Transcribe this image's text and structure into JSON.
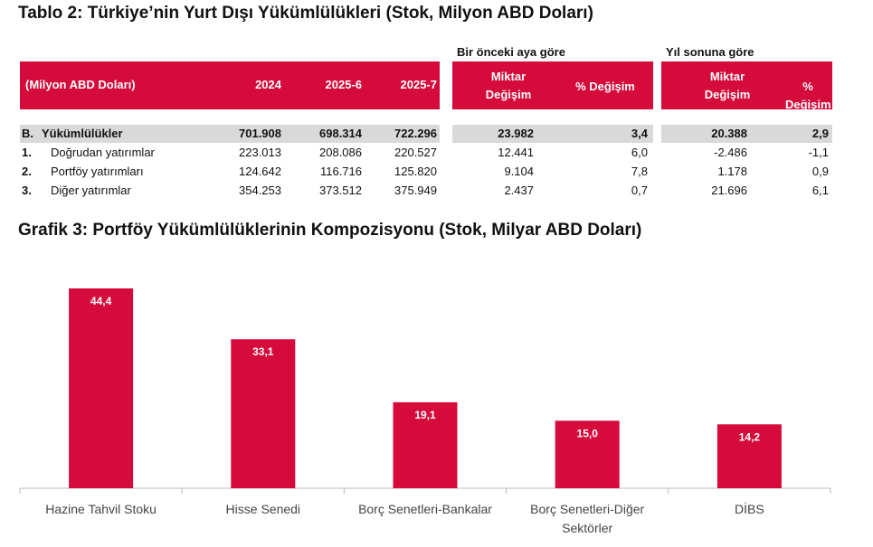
{
  "table": {
    "title": "Tablo 2: Türkiye’nin Yurt Dışı Yükümlülükleri (Stok, Milyon ABD Doları)",
    "group_headers": [
      "Bir önceki aya göre",
      "Yıl sonuna göre"
    ],
    "columns": [
      "(Milyon ABD Doları)",
      "2024",
      "2025-6",
      "2025-7",
      "Miktar Değişim",
      "% Değişim",
      "Miktar Değişim",
      "% Değişim"
    ],
    "rows": [
      [
        "B.",
        "Yükümlülükler",
        "701.908",
        "698.314",
        "722.296",
        "23.982",
        "3,4",
        "20.388",
        "2,9"
      ],
      [
        "1.",
        "Doğrudan yatırımlar",
        "223.013",
        "208.086",
        "220.527",
        "12.441",
        "6,0",
        "-2.486",
        "-1,1"
      ],
      [
        "2.",
        "Portföy yatırımları",
        "124.642",
        "116.716",
        "125.820",
        "9.104",
        "7,8",
        "1.178",
        "0,9"
      ],
      [
        "3.",
        "Diğer yatırımlar",
        "354.253",
        "373.512",
        "375.949",
        "2.437",
        "0,7",
        "21.696",
        "6,1"
      ]
    ]
  },
  "chart_data": {
    "type": "bar",
    "title": "Grafik 3: Portföy Yükümlülüklerinin Kompozisyonu (Stok, Milyar ABD Doları)",
    "categories": [
      "Hazine Tahvil Stoku",
      "Hisse Senedi",
      "Borç Senetleri-Bankalar",
      "Borç Senetleri-Diğer Sektörler",
      "DİBS"
    ],
    "values": [
      44.4,
      33.1,
      19.1,
      15.0,
      14.2
    ],
    "value_labels": [
      "44,4",
      "33,1",
      "19,1",
      "15,0",
      "14,2"
    ],
    "color": "#d50b3b"
  }
}
